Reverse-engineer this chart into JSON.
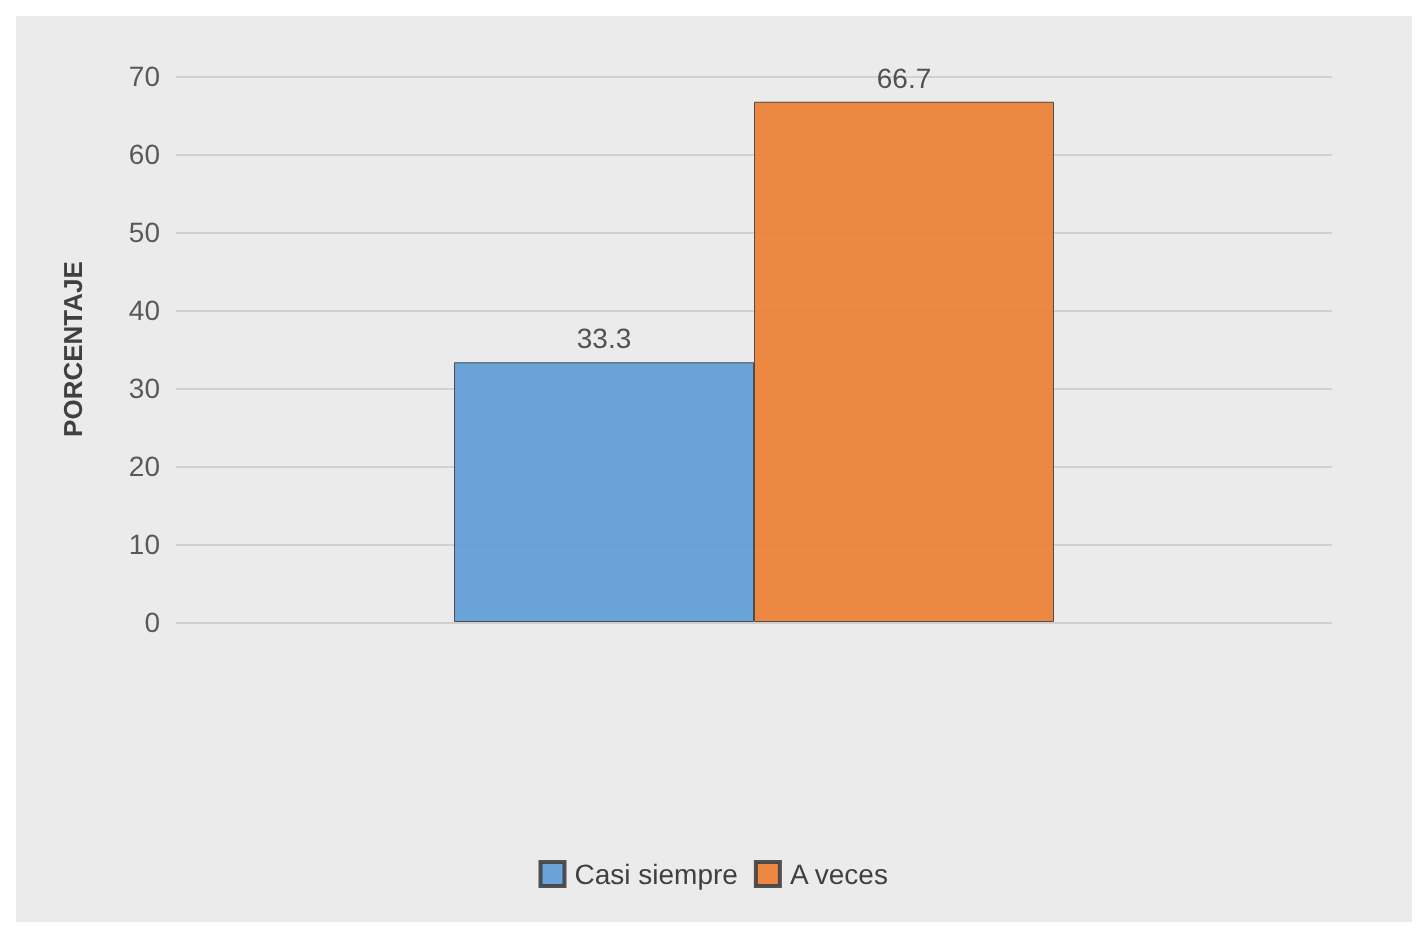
{
  "chart_data": {
    "type": "bar",
    "ylabel": "PORCENTAJE",
    "categories": [
      null
    ],
    "series": [
      {
        "name": "Casi siempre",
        "color": "#5b9bd5",
        "values": [
          33.3
        ]
      },
      {
        "name": "A veces",
        "color": "#ed7d31",
        "values": [
          66.7
        ]
      }
    ],
    "ylim": [
      0,
      70
    ],
    "yticks": [
      0,
      10,
      20,
      30,
      40,
      50,
      60,
      70
    ],
    "grid": "y",
    "legend": "bottom",
    "data_labels": true
  }
}
